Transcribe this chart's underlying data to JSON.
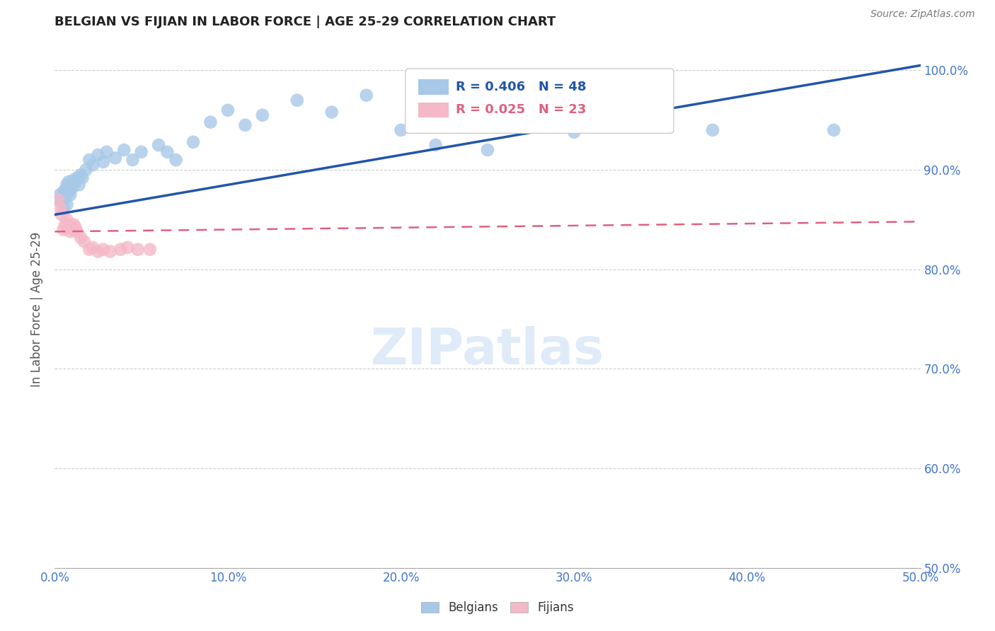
{
  "title": "BELGIAN VS FIJIAN IN LABOR FORCE | AGE 25-29 CORRELATION CHART",
  "source": "Source: ZipAtlas.com",
  "ylabel": "In Labor Force | Age 25-29",
  "xlim": [
    0.0,
    0.5
  ],
  "ylim": [
    0.5,
    1.02
  ],
  "xticks": [
    0.0,
    0.1,
    0.2,
    0.3,
    0.4,
    0.5
  ],
  "xticklabels": [
    "0.0%",
    "10.0%",
    "20.0%",
    "30.0%",
    "40.0%",
    "50.0%"
  ],
  "yticks_right": [
    0.5,
    0.6,
    0.7,
    0.8,
    0.9,
    1.0
  ],
  "yticklabels_right": [
    "50.0%",
    "60.0%",
    "70.0%",
    "80.0%",
    "90.0%",
    "100.0%"
  ],
  "blue_R": 0.406,
  "blue_N": 48,
  "pink_R": 0.025,
  "pink_N": 23,
  "legend_label_blue": "Belgians",
  "legend_label_pink": "Fijians",
  "blue_color": "#a8c8e8",
  "pink_color": "#f4b8c8",
  "blue_line_color": "#2255aa",
  "pink_line_color": "#e06080",
  "axis_label_color": "#4477cc",
  "tick_color": "#4477cc",
  "title_color": "#222222",
  "grid_color": "#cccccc",
  "blue_x": [
    0.002,
    0.003,
    0.004,
    0.005,
    0.005,
    0.006,
    0.006,
    0.007,
    0.007,
    0.008,
    0.008,
    0.009,
    0.009,
    0.01,
    0.011,
    0.012,
    0.013,
    0.014,
    0.015,
    0.016,
    0.018,
    0.02,
    0.022,
    0.025,
    0.028,
    0.03,
    0.035,
    0.04,
    0.045,
    0.05,
    0.06,
    0.065,
    0.07,
    0.08,
    0.09,
    0.1,
    0.11,
    0.12,
    0.14,
    0.16,
    0.18,
    0.2,
    0.22,
    0.25,
    0.3,
    0.33,
    0.38,
    0.45
  ],
  "blue_y": [
    0.87,
    0.875,
    0.868,
    0.878,
    0.862,
    0.872,
    0.88,
    0.885,
    0.865,
    0.878,
    0.888,
    0.88,
    0.875,
    0.882,
    0.89,
    0.888,
    0.892,
    0.885,
    0.895,
    0.892,
    0.9,
    0.91,
    0.905,
    0.915,
    0.908,
    0.918,
    0.912,
    0.92,
    0.91,
    0.918,
    0.925,
    0.918,
    0.91,
    0.928,
    0.948,
    0.96,
    0.945,
    0.955,
    0.97,
    0.958,
    0.975,
    0.94,
    0.925,
    0.92,
    0.938,
    0.945,
    0.94,
    0.94
  ],
  "pink_x": [
    0.002,
    0.003,
    0.004,
    0.005,
    0.006,
    0.007,
    0.008,
    0.009,
    0.01,
    0.011,
    0.012,
    0.013,
    0.015,
    0.017,
    0.02,
    0.022,
    0.025,
    0.028,
    0.032,
    0.038,
    0.042,
    0.048,
    0.055
  ],
  "pink_y": [
    0.87,
    0.862,
    0.855,
    0.84,
    0.845,
    0.85,
    0.845,
    0.838,
    0.84,
    0.845,
    0.842,
    0.838,
    0.832,
    0.828,
    0.82,
    0.822,
    0.818,
    0.82,
    0.818,
    0.82,
    0.822,
    0.82,
    0.82
  ],
  "blue_trend_x0": 0.0,
  "blue_trend_y0": 0.855,
  "blue_trend_x1": 0.5,
  "blue_trend_y1": 1.005,
  "pink_trend_x0": 0.0,
  "pink_trend_y0": 0.838,
  "pink_trend_x1": 0.5,
  "pink_trend_y1": 0.848
}
